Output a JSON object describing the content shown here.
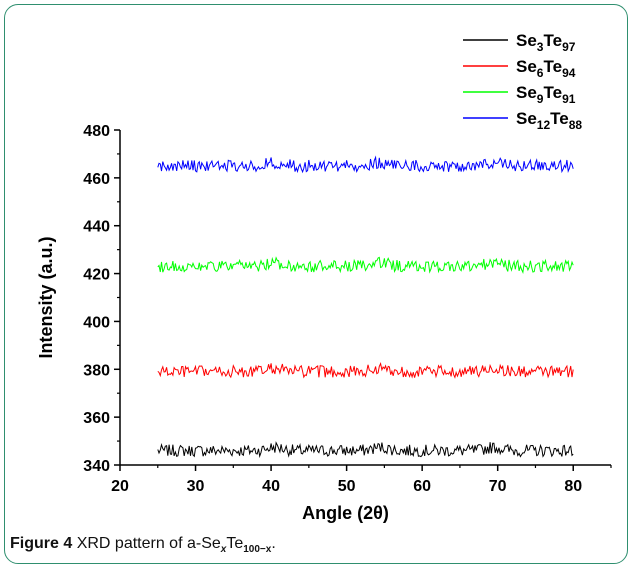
{
  "caption": {
    "figure_label": "Figure 4",
    "text_prefix": "XRD pattern of a-Se",
    "sub_x": "x",
    "text_mid": "Te",
    "sub_rest": "100−x",
    "text_end": "."
  },
  "chart_data": {
    "type": "line",
    "xlabel": "Angle (2θ)",
    "ylabel": "Intensity (a.u.)",
    "xlim": [
      20,
      85
    ],
    "ylim": [
      340,
      480
    ],
    "xticks": [
      20,
      30,
      40,
      50,
      60,
      70,
      80
    ],
    "yticks": [
      340,
      360,
      380,
      400,
      420,
      440,
      460,
      480
    ],
    "x_range": [
      25,
      80
    ],
    "legend_position": "top-right",
    "series": [
      {
        "name": "Se3Te97",
        "base": "Se",
        "sub1": "3",
        "mid": "Te",
        "sub2": "97",
        "color": "#000000",
        "baseline": 346
      },
      {
        "name": "Se6Te94",
        "base": "Se",
        "sub1": "6",
        "mid": "Te",
        "sub2": "94",
        "color": "#ff0000",
        "baseline": 379
      },
      {
        "name": "Se9Te91",
        "base": "Se",
        "sub1": "9",
        "mid": "Te",
        "sub2": "91",
        "color": "#00ff00",
        "baseline": 423
      },
      {
        "name": "Se12Te88",
        "base": "Se",
        "sub1": "12",
        "mid": "Te",
        "sub2": "88",
        "color": "#0000ff",
        "baseline": 465
      }
    ],
    "peaks": [
      40.5,
      54.5,
      69.5
    ]
  }
}
